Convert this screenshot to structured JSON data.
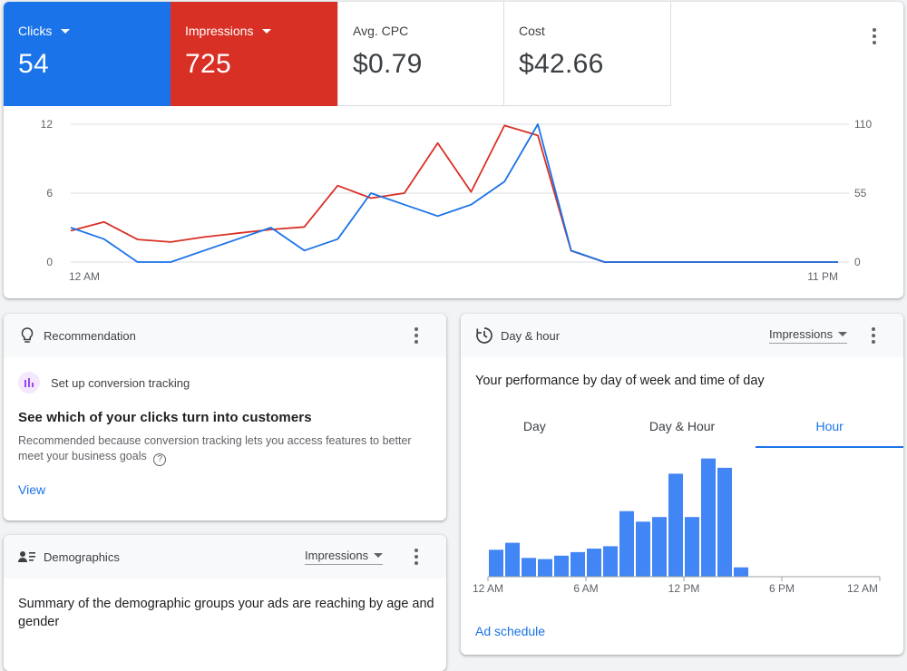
{
  "metrics": {
    "clicks": {
      "label": "Clicks",
      "value": "54"
    },
    "impressions": {
      "label": "Impressions",
      "value": "725"
    },
    "cpc": {
      "label": "Avg. CPC",
      "value": "$0.79"
    },
    "cost": {
      "label": "Cost",
      "value": "$42.66"
    }
  },
  "colors": {
    "clicks": "#1a73e8",
    "impressions": "#d93025",
    "bar": "#4285f4"
  },
  "chart_data": [
    {
      "type": "line",
      "title": "",
      "x_tick_labels": [
        "12 AM",
        "11 PM"
      ],
      "x": [
        0,
        1,
        2,
        3,
        4,
        5,
        6,
        7,
        8,
        9,
        10,
        11,
        12,
        13,
        14,
        15,
        16,
        17,
        18,
        19,
        20,
        21,
        22,
        23
      ],
      "y_left_ticks": [
        "12",
        "6",
        "0"
      ],
      "y_right_ticks": [
        "110",
        "55",
        "0"
      ],
      "ylim_left": [
        0,
        12
      ],
      "ylim_right": [
        0,
        110
      ],
      "series": [
        {
          "name": "Clicks",
          "axis": "left",
          "values": [
            3,
            2,
            0,
            0,
            1,
            2,
            3,
            1,
            2,
            6,
            5,
            4,
            5,
            7,
            12,
            1,
            0,
            0,
            0,
            0,
            0,
            0,
            0,
            0
          ]
        },
        {
          "name": "Impressions",
          "axis": "right",
          "values": [
            25,
            32,
            18,
            16,
            20,
            23,
            26,
            28,
            61,
            51,
            55,
            95,
            56,
            109,
            101,
            9,
            0,
            0,
            0,
            0,
            0,
            0,
            0,
            0
          ]
        }
      ],
      "grid": true
    },
    {
      "type": "bar",
      "title": "",
      "x_tick_labels": [
        "12 AM",
        "6 AM",
        "12 PM",
        "6 PM",
        "12 AM"
      ],
      "categories": [
        0,
        1,
        2,
        3,
        4,
        5,
        6,
        7,
        8,
        9,
        10,
        11,
        12,
        13,
        14,
        15,
        16,
        17,
        18,
        19,
        20,
        21,
        22,
        23
      ],
      "values": [
        23,
        29,
        16,
        15,
        18,
        21,
        24,
        26,
        56,
        47,
        51,
        88,
        51,
        101,
        93,
        8,
        0,
        0,
        0,
        0,
        0,
        0,
        0,
        0
      ],
      "ylim": [
        0,
        110
      ],
      "grid": false
    }
  ],
  "recommendation": {
    "header": "Recommendation",
    "item_label": "Set up conversion tracking",
    "title": "See which of your clicks turn into customers",
    "description": "Recommended because conversion tracking lets you access features to better meet your business goals",
    "link": "View"
  },
  "demographics": {
    "header": "Demographics",
    "dropdown": "Impressions",
    "title": "Summary of the demographic groups your ads are reaching by age and gender"
  },
  "day_hour": {
    "header": "Day & hour",
    "dropdown": "Impressions",
    "title": "Your performance by day of week and time of day",
    "tabs": [
      "Day",
      "Day & Hour",
      "Hour"
    ],
    "active_tab": "Hour",
    "link": "Ad schedule"
  }
}
